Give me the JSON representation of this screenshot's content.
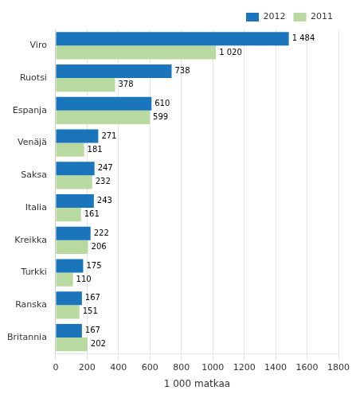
{
  "chart_data": {
    "type": "bar",
    "orientation": "horizontal",
    "categories": [
      "Britannia",
      "Ranska",
      "Turkki",
      "Kreikka",
      "Italia",
      "Saksa",
      "Venäjä",
      "Espanja",
      "Ruotsi",
      "Viro"
    ],
    "series": [
      {
        "name": "2012",
        "color": "#1b75bb",
        "values": [
          167,
          167,
          175,
          222,
          243,
          247,
          271,
          610,
          738,
          1484
        ],
        "value_labels": [
          "167",
          "167",
          "175",
          "222",
          "243",
          "247",
          "271",
          "610",
          "738",
          "1 484"
        ]
      },
      {
        "name": "2011",
        "color": "#b8d9a0",
        "values": [
          202,
          151,
          110,
          206,
          161,
          232,
          181,
          599,
          378,
          1020
        ],
        "value_labels": [
          "202",
          "151",
          "110",
          "206",
          "161",
          "232",
          "181",
          "599",
          "378",
          "1 020"
        ]
      }
    ],
    "xlabel": "1 000 matkaa",
    "xlim": [
      0,
      1800
    ],
    "xticks": [
      0,
      200,
      400,
      600,
      800,
      1000,
      1200,
      1400,
      1600,
      1800
    ],
    "grid": true,
    "legend": "upper right",
    "data_labels": true
  }
}
